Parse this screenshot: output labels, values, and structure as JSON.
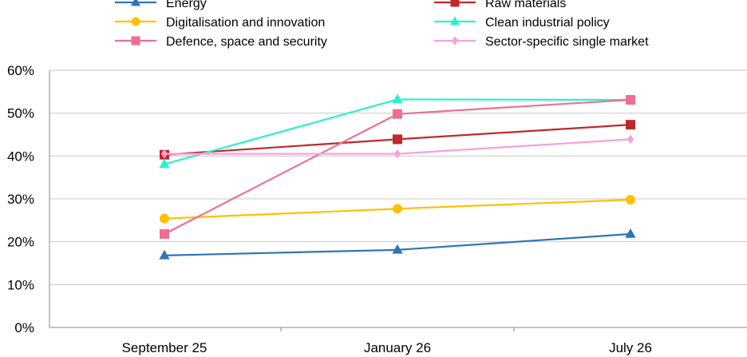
{
  "chart_data": {
    "type": "line",
    "title": "",
    "xlabel": "",
    "ylabel": "",
    "categories": [
      "September 25",
      "January 26",
      "July 26"
    ],
    "ylim": [
      0,
      60
    ],
    "yticks": [
      "0%",
      "10%",
      "20%",
      "30%",
      "40%",
      "50%",
      "60%"
    ],
    "grid": "horizontal",
    "legend_position": "top",
    "series": [
      {
        "name": "Energy",
        "color": "#2E75B6",
        "marker": "triangle",
        "values": [
          16.8,
          18.1,
          21.8
        ]
      },
      {
        "name": "Raw materials",
        "color": "#C0282B",
        "marker": "square",
        "values": [
          40.3,
          43.9,
          47.3
        ]
      },
      {
        "name": "Digitalisation and innovation",
        "color": "#FFC000",
        "marker": "circle",
        "values": [
          25.4,
          27.7,
          29.8
        ]
      },
      {
        "name": "Clean industrial policy",
        "color": "#2EF0C8",
        "marker": "triangle",
        "values": [
          38.1,
          53.2,
          53.1
        ]
      },
      {
        "name": "Defence, space and security",
        "color": "#F06E96",
        "marker": "square",
        "values": [
          21.8,
          49.8,
          53.1
        ]
      },
      {
        "name": "Sector-specific single market",
        "color": "#F7A1D6",
        "marker": "diamond",
        "values": [
          40.5,
          40.5,
          43.9
        ]
      }
    ]
  }
}
